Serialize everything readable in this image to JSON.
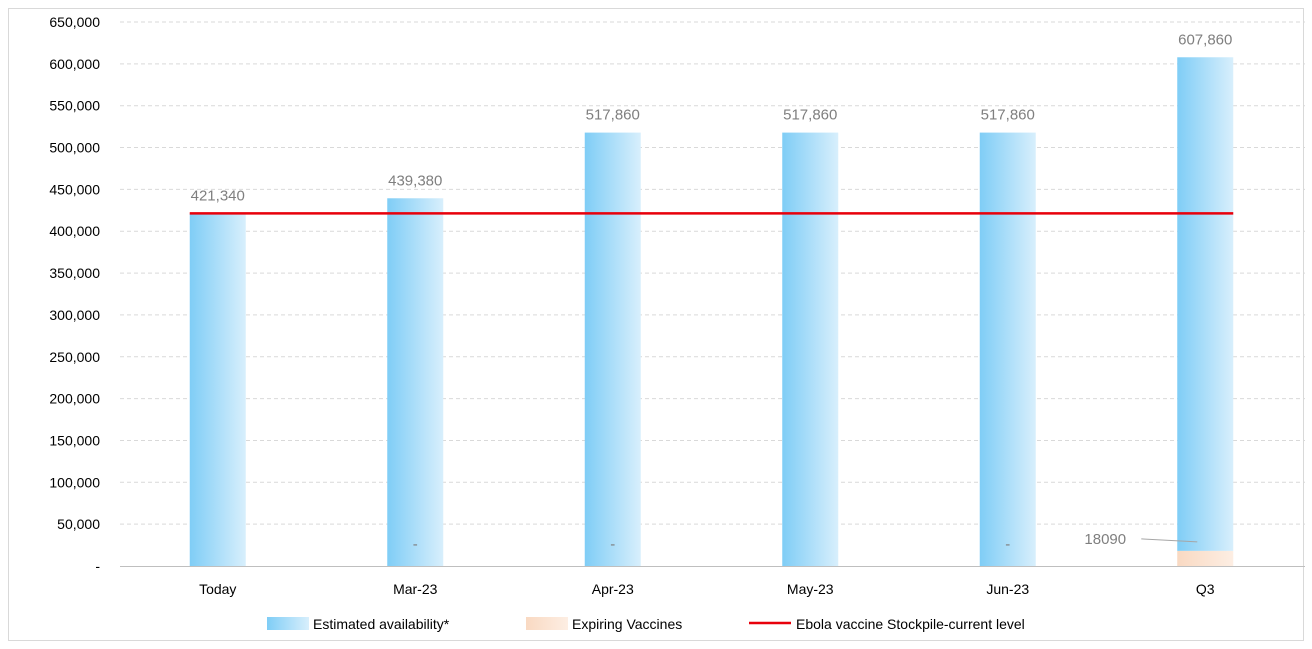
{
  "chart_data": {
    "type": "bar",
    "categories": [
      "Today",
      "Mar-23",
      "Apr-23",
      "May-23",
      "Jun-23",
      "Q3"
    ],
    "series": [
      {
        "name": "Estimated availability*",
        "kind": "bar",
        "color": "#8fd3f7",
        "values": [
          421340,
          439380,
          517860,
          517860,
          517860,
          607860
        ],
        "labels": [
          "421,340",
          "439,380",
          "517,860",
          "517,860",
          "517,860",
          "607,860"
        ]
      },
      {
        "name": "Expiring Vaccines",
        "kind": "bar",
        "color": "#fbe0cc",
        "values": [
          0,
          0,
          0,
          0,
          0,
          18090
        ],
        "labels": [
          "",
          "-",
          "-",
          "",
          "-",
          "18090"
        ]
      },
      {
        "name": "Ebola vaccine Stockpile-current level",
        "kind": "line",
        "color": "#e8000b",
        "values": [
          421340,
          421340,
          421340,
          421340,
          421340,
          421340
        ]
      }
    ],
    "ylim": [
      0,
      650000
    ],
    "yticks": [
      0,
      50000,
      100000,
      150000,
      200000,
      250000,
      300000,
      350000,
      400000,
      450000,
      500000,
      550000,
      600000,
      650000
    ],
    "ytick_labels": [
      "-",
      "50,000",
      "100,000",
      "150,000",
      "200,000",
      "250,000",
      "300,000",
      "350,000",
      "400,000",
      "450,000",
      "500,000",
      "550,000",
      "600,000",
      "650,000"
    ],
    "grid": true,
    "legend_position": "bottom",
    "title": "",
    "xlabel": "",
    "ylabel": ""
  }
}
